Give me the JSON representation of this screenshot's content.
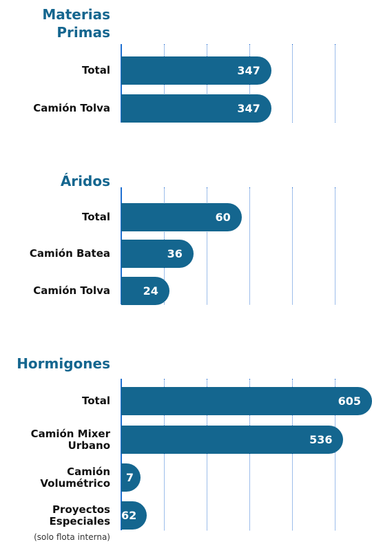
{
  "chart_data": [
    {
      "type": "hbar",
      "title": "Materias Primas",
      "categories": [
        "Total",
        "Camión Tolva"
      ],
      "values": [
        347,
        347
      ],
      "color": "#14668f",
      "xlim": [
        0,
        580
      ]
    },
    {
      "type": "hbar",
      "title": "Áridos",
      "categories": [
        "Total",
        "Camión Batea",
        "Camión Tolva"
      ],
      "values": [
        60,
        36,
        24
      ],
      "color": "#14668f",
      "xlim": [
        0,
        125
      ]
    },
    {
      "type": "hbar",
      "title": "Hormigones",
      "categories": [
        "Total",
        "Camión Mixer Urbano",
        "Camión Volumétrico",
        "Proyectos Especiales"
      ],
      "values": [
        605,
        536,
        7,
        62
      ],
      "color": "#14668f",
      "xlim": [
        0,
        605
      ],
      "annotation": "(solo flota interna)"
    }
  ]
}
